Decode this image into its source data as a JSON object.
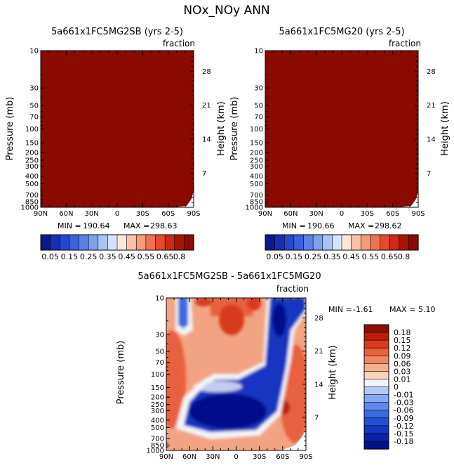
{
  "page_title": "NOx_NOy ANN",
  "colors": {
    "panel_fill": "#8a0a00",
    "seq_palette": [
      "#0a1a8c",
      "#1530b0",
      "#2447cc",
      "#3a62dd",
      "#5a82e6",
      "#7fa1ee",
      "#a8c3f5",
      "#d6e4fb",
      "#fbe6d8",
      "#fac2a5",
      "#f79c78",
      "#f07350",
      "#e44b2d",
      "#cc2a14",
      "#a91505",
      "#8a0a00"
    ],
    "diff_palette": [
      "#000f8a",
      "#0723a8",
      "#1236c0",
      "#2150d5",
      "#3a6ae2",
      "#5d88ec",
      "#85a8f3",
      "#b4caf8",
      "#f2f4f7",
      "#fbd2bd",
      "#f8ad8d",
      "#f28562",
      "#e8603c",
      "#d83a1b",
      "#bb1d07",
      "#8f0c00"
    ]
  },
  "chart_data": [
    {
      "type": "heatmap",
      "title": "5a661x1FC5MG2SB (yrs 2-5)",
      "units_label": "fraction",
      "ylabel": "Pressure (mb)",
      "y2label": "Height (km)",
      "x_ticks": [
        "90N",
        "60N",
        "30N",
        "0",
        "30S",
        "60S",
        "90S"
      ],
      "y_ticks": [
        "10",
        "30",
        "50",
        "70",
        "100",
        "150",
        "200",
        "250",
        "300",
        "400",
        "500",
        "700",
        "850",
        "1000"
      ],
      "y2_ticks": [
        "28",
        "21",
        "14",
        "7"
      ],
      "stats": {
        "min_label": "MIN =",
        "min": "190.64",
        "max_label": "MAX =",
        "max": "298.63"
      },
      "colorbar_labels": [
        "0.05",
        "0.15",
        "0.25",
        "0.35",
        "0.45",
        "0.55",
        "0.65",
        "0.8"
      ]
    },
    {
      "type": "heatmap",
      "title": "5a661x1FC5MG20 (yrs 2-5)",
      "units_label": "fraction",
      "ylabel": "Pressure (mb)",
      "y2label": "Height (km)",
      "x_ticks": [
        "90N",
        "60N",
        "30N",
        "0",
        "30S",
        "60S",
        "90S"
      ],
      "y_ticks": [
        "10",
        "30",
        "50",
        "70",
        "100",
        "150",
        "200",
        "250",
        "300",
        "400",
        "500",
        "700",
        "850",
        "1000"
      ],
      "y2_ticks": [
        "28",
        "21",
        "14",
        "7"
      ],
      "stats": {
        "min_label": "MIN =",
        "min": "190.66",
        "max_label": "MAX =",
        "max": "298.62"
      },
      "colorbar_labels": [
        "0.05",
        "0.15",
        "0.25",
        "0.35",
        "0.45",
        "0.55",
        "0.65",
        "0.8"
      ]
    },
    {
      "type": "heatmap",
      "title": "5a661x1FC5MG2SB - 5a661x1FC5MG20",
      "units_label": "fraction",
      "ylabel": "Pressure (mb)",
      "y2label": "Height (km)",
      "x_ticks": [
        "90N",
        "60N",
        "30N",
        "0",
        "30S",
        "60S",
        "90S"
      ],
      "y_ticks": [
        "10",
        "30",
        "50",
        "70",
        "100",
        "150",
        "200",
        "250",
        "300",
        "400",
        "500",
        "700",
        "850",
        "1000"
      ],
      "y2_ticks": [
        "28",
        "21",
        "14",
        "7"
      ],
      "stats": {
        "min_label": "MIN =",
        "min": "-1.61",
        "max_label": "MAX =",
        "max": "5.10"
      },
      "colorbar_labels": [
        "0.18",
        "0.15",
        "0.12",
        "0.09",
        "0.06",
        "0.03",
        "0.01",
        "0",
        "-0.01",
        "-0.03",
        "-0.06",
        "-0.09",
        "-0.12",
        "-0.15",
        "-0.18"
      ]
    }
  ]
}
